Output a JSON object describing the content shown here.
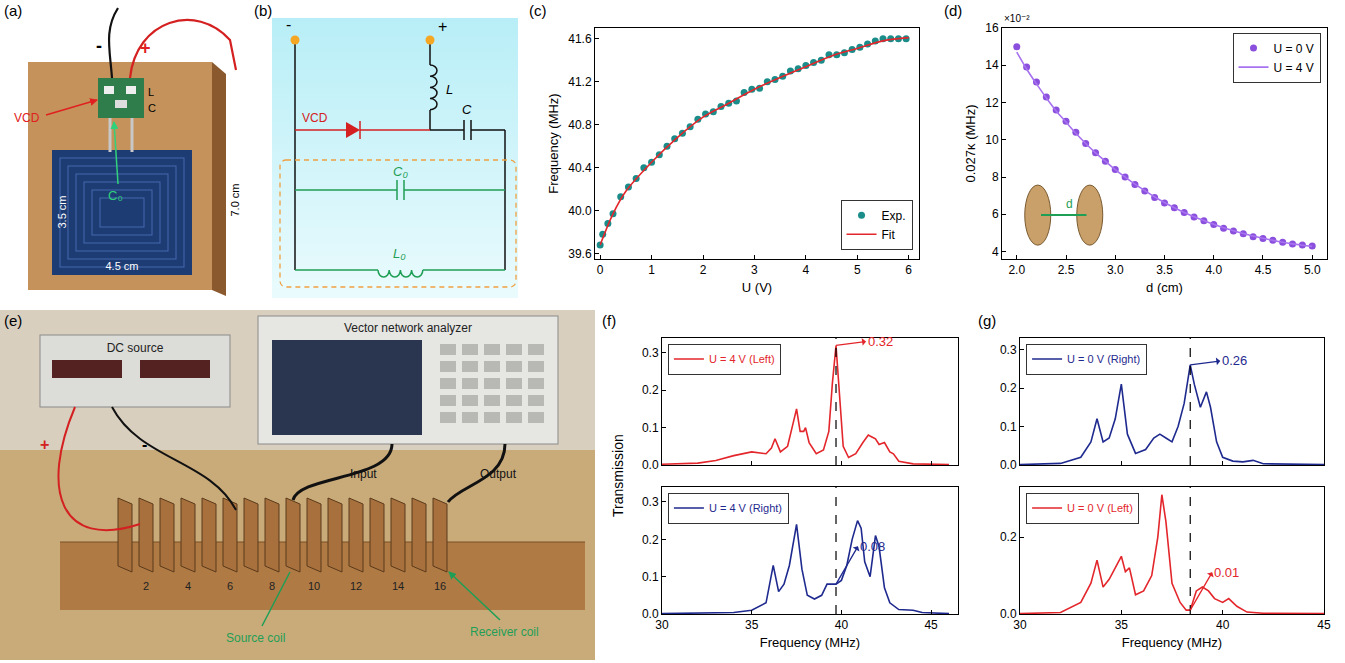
{
  "figures": {
    "a": {
      "letter": "(a)",
      "labels": {
        "minus": "-",
        "plus": "+",
        "vcd": "VCD",
        "l": "L",
        "c": "C",
        "c0": "C₀",
        "coil_height": "3.5 cm",
        "coil_width": "4.5 cm",
        "board": "7.0 cm"
      }
    },
    "b": {
      "letter": "(b)",
      "labels": {
        "minus": "-",
        "plus": "+",
        "l": "L",
        "vcd": "VCD",
        "c": "C",
        "c0": "C₀",
        "l0": "L₀"
      }
    },
    "e": {
      "letter": "(e)",
      "labels": {
        "dc_source": "DC source",
        "vna": "Vector network analyzer",
        "input": "Input",
        "output": "Output",
        "plus": "+",
        "minus": "-",
        "source_coil": "Source coil",
        "receiver_coil": "Receiver coil"
      },
      "coil_numbers": [
        2,
        4,
        6,
        8,
        10,
        12,
        14,
        16
      ]
    }
  },
  "chart_data": [
    {
      "letter": "(c)",
      "type": "line",
      "xlabel": "U (V)",
      "ylabel": "Frequency (MHz)",
      "xlim": [
        -0.1,
        6.2
      ],
      "xticks": [
        0,
        1,
        2,
        3,
        4,
        5,
        6
      ],
      "ylim": [
        39.55,
        41.7
      ],
      "yticks": [
        39.6,
        {
          "value": 40,
          "label": "40.0"
        },
        40.4,
        40.8,
        41.2,
        41.6
      ],
      "grid": false,
      "legend": "lower right",
      "series": [
        {
          "name": "Exp.",
          "type": "scatter",
          "marker": "circle",
          "color": "#1a8c8a",
          "x": [
            0,
            0.05,
            0.15,
            0.25,
            0.4,
            0.55,
            0.7,
            0.85,
            1.0,
            1.15,
            1.3,
            1.45,
            1.6,
            1.75,
            1.9,
            2.05,
            2.2,
            2.35,
            2.5,
            2.65,
            2.8,
            2.95,
            3.1,
            3.25,
            3.4,
            3.55,
            3.7,
            3.85,
            4.0,
            4.15,
            4.3,
            4.45,
            4.6,
            4.75,
            4.9,
            5.05,
            5.2,
            5.35,
            5.5,
            5.65,
            5.8,
            5.95
          ],
          "values": [
            39.68,
            39.78,
            39.88,
            39.97,
            40.13,
            40.22,
            40.3,
            40.4,
            40.45,
            40.52,
            40.6,
            40.67,
            40.72,
            40.78,
            40.85,
            40.9,
            40.92,
            40.97,
            41.0,
            41.02,
            41.1,
            41.13,
            41.14,
            41.2,
            41.22,
            41.25,
            41.3,
            41.32,
            41.35,
            41.38,
            41.4,
            41.45,
            41.45,
            41.47,
            41.5,
            41.52,
            41.55,
            41.58,
            41.6,
            41.6,
            41.6,
            41.6
          ]
        },
        {
          "name": "Fit",
          "type": "line",
          "line_style": "solid",
          "color": "#e3262b",
          "x": [
            0,
            0.25,
            0.5,
            1,
            1.5,
            2,
            2.5,
            3,
            3.5,
            4,
            4.5,
            5,
            5.5,
            6
          ],
          "values": [
            39.68,
            39.97,
            40.18,
            40.45,
            40.68,
            40.87,
            41.0,
            41.13,
            41.24,
            41.34,
            41.44,
            41.51,
            41.58,
            41.61
          ]
        }
      ]
    },
    {
      "letter": "(d)",
      "type": "line",
      "xlabel": "d (cm)",
      "ylabel": "0.027κ (MHz)",
      "y_multiplier": "×10⁻²",
      "inset_label": "d",
      "xlim": [
        1.85,
        5.15
      ],
      "xticks": [
        {
          "value": 2,
          "label": "2.0"
        },
        2.5,
        {
          "value": 3,
          "label": "3.0"
        },
        3.5,
        {
          "value": 4,
          "label": "4.0"
        },
        4.5,
        {
          "value": 5,
          "label": "5.0"
        }
      ],
      "ylim": [
        3.6,
        16
      ],
      "yticks": [
        4,
        6,
        8,
        10,
        12,
        14,
        16
      ],
      "grid": false,
      "legend": "upper right",
      "series": [
        {
          "name": "U = 0 V",
          "type": "scatter",
          "marker": "circle",
          "color": "#8a4fdc",
          "x": [
            2.0,
            2.1,
            2.2,
            2.3,
            2.4,
            2.5,
            2.6,
            2.7,
            2.8,
            2.9,
            3.0,
            3.1,
            3.2,
            3.3,
            3.4,
            3.5,
            3.6,
            3.7,
            3.8,
            3.9,
            4.0,
            4.1,
            4.2,
            4.3,
            4.4,
            4.5,
            4.6,
            4.7,
            4.8,
            4.9,
            5.0
          ],
          "values": [
            15.0,
            13.9,
            13.1,
            12.3,
            11.6,
            11.0,
            10.4,
            9.8,
            9.3,
            8.85,
            8.4,
            8.0,
            7.6,
            7.25,
            6.9,
            6.6,
            6.35,
            6.1,
            5.85,
            5.65,
            5.45,
            5.25,
            5.1,
            4.95,
            4.8,
            4.7,
            4.6,
            4.5,
            4.4,
            4.35,
            4.3
          ]
        },
        {
          "name": "U = 4 V",
          "type": "line",
          "line_style": "solid",
          "color": "#a772f0",
          "x": [
            2.0,
            2.1,
            2.2,
            2.3,
            2.4,
            2.5,
            2.6,
            2.7,
            2.8,
            2.9,
            3.0,
            3.1,
            3.2,
            3.3,
            3.4,
            3.5,
            3.6,
            3.7,
            3.8,
            3.9,
            4.0,
            4.1,
            4.2,
            4.3,
            4.4,
            4.5,
            4.6,
            4.7,
            4.8,
            4.9,
            5.0
          ],
          "values": [
            14.7,
            13.8,
            13.0,
            12.25,
            11.55,
            10.95,
            10.35,
            9.8,
            9.3,
            8.85,
            8.4,
            8.0,
            7.62,
            7.27,
            6.93,
            6.63,
            6.35,
            6.1,
            5.87,
            5.66,
            5.46,
            5.28,
            5.12,
            4.97,
            4.83,
            4.71,
            4.6,
            4.5,
            4.41,
            4.34,
            4.28
          ]
        }
      ]
    },
    {
      "letter": "(f)",
      "type": "line",
      "xlabel": "Frequency (MHz)",
      "ylabel": "Transmission",
      "xlim": [
        30,
        46.5
      ],
      "xticks": [
        30,
        35,
        40,
        45
      ],
      "grid": false,
      "dashed_x": 39.7,
      "subplots": [
        {
          "ylim": [
            0,
            0.34
          ],
          "yticks": [
            {
              "value": 0,
              "label": "0.0"
            },
            0.1,
            0.2,
            0.3
          ],
          "legend": "upper left",
          "tick_labels": "y",
          "annotation": {
            "text": "0.32",
            "x": 39.7,
            "y": 0.32
          },
          "series": [
            {
              "name": "U = 4 V (Left)",
              "type": "line",
              "line_style": "solid",
              "color": "#e3262b",
              "x": [
                30,
                32,
                33,
                34,
                35,
                35.8,
                36.1,
                36.3,
                36.6,
                37.0,
                37.3,
                37.5,
                37.7,
                37.9,
                38.0,
                38.2,
                38.6,
                39.0,
                39.3,
                39.5,
                39.7,
                39.9,
                40.1,
                40.4,
                40.8,
                41.2,
                41.5,
                41.7,
                41.9,
                42.1,
                42.4,
                42.7,
                42.9,
                43.2,
                44,
                46
              ],
              "values": [
                0.002,
                0.005,
                0.012,
                0.025,
                0.035,
                0.03,
                0.045,
                0.07,
                0.035,
                0.05,
                0.11,
                0.15,
                0.09,
                0.09,
                0.1,
                0.06,
                0.03,
                0.04,
                0.09,
                0.22,
                0.32,
                0.18,
                0.05,
                0.02,
                0.03,
                0.06,
                0.08,
                0.075,
                0.07,
                0.055,
                0.06,
                0.035,
                0.03,
                0.01,
                0.003,
                0.001
              ]
            }
          ]
        },
        {
          "ylim": [
            0,
            0.34
          ],
          "yticks": [
            {
              "value": 0,
              "label": "0.0"
            },
            0.1,
            0.2,
            0.3
          ],
          "legend": "upper left",
          "annotation": {
            "text": "0.08",
            "x": 39.7,
            "y": 0.08
          },
          "series": [
            {
              "name": "U = 4 V (Right)",
              "type": "line",
              "line_style": "solid",
              "color": "#1f2a8f",
              "x": [
                30,
                34,
                35,
                35.8,
                36.0,
                36.2,
                36.5,
                36.8,
                37.1,
                37.5,
                37.8,
                38.1,
                38.5,
                38.9,
                39.2,
                39.5,
                39.7,
                40.0,
                40.3,
                40.6,
                40.9,
                41.1,
                41.3,
                41.6,
                41.9,
                42.1,
                42.4,
                42.7,
                43.2,
                44,
                44.5,
                46
              ],
              "values": [
                0.001,
                0.004,
                0.01,
                0.03,
                0.08,
                0.13,
                0.06,
                0.08,
                0.13,
                0.24,
                0.12,
                0.05,
                0.04,
                0.05,
                0.08,
                0.08,
                0.08,
                0.09,
                0.13,
                0.2,
                0.25,
                0.23,
                0.14,
                0.1,
                0.21,
                0.18,
                0.07,
                0.03,
                0.012,
                0.01,
                0.004,
                0.001
              ]
            }
          ]
        }
      ]
    },
    {
      "letter": "(g)",
      "type": "line",
      "xlabel": "Frequency (MHz)",
      "xlim": [
        30,
        45
      ],
      "xticks": [
        30,
        35,
        40,
        45
      ],
      "grid": false,
      "dashed_x": 38.4,
      "subplots": [
        {
          "ylim": [
            0,
            0.33
          ],
          "yticks": [
            {
              "value": 0,
              "label": "0.0"
            },
            0.1,
            0.2,
            0.3
          ],
          "legend": "upper left",
          "tick_labels": "y",
          "annotation": {
            "text": "0.26",
            "x": 38.4,
            "y": 0.26
          },
          "series": [
            {
              "name": "U = 0 V (Right)",
              "type": "line",
              "line_style": "solid",
              "color": "#1f2a8f",
              "x": [
                30,
                32,
                33,
                33.5,
                33.8,
                34.1,
                34.4,
                34.7,
                35.0,
                35.3,
                35.7,
                36.2,
                36.6,
                36.9,
                37.2,
                37.5,
                37.8,
                38.1,
                38.4,
                38.6,
                38.9,
                39.2,
                39.4,
                39.7,
                40.0,
                40.5,
                41,
                41.5,
                42,
                45
              ],
              "values": [
                0.001,
                0.004,
                0.02,
                0.06,
                0.12,
                0.06,
                0.07,
                0.12,
                0.21,
                0.08,
                0.03,
                0.04,
                0.07,
                0.08,
                0.07,
                0.06,
                0.1,
                0.16,
                0.26,
                0.21,
                0.15,
                0.19,
                0.15,
                0.06,
                0.02,
                0.01,
                0.008,
                0.012,
                0.003,
                0.001
              ]
            }
          ]
        },
        {
          "ylim": [
            0,
            0.33
          ],
          "yticks": [
            {
              "value": 0,
              "label": "0.0"
            },
            0.2
          ],
          "legend": "upper left",
          "annotation": {
            "text": "0.01",
            "x": 38.4,
            "y": 0.01
          },
          "series": [
            {
              "name": "U = 0 V (Left)",
              "type": "line",
              "line_style": "solid",
              "color": "#e3262b",
              "x": [
                30,
                32,
                33,
                33.5,
                33.8,
                34.1,
                34.4,
                34.8,
                35.0,
                35.2,
                35.4,
                35.7,
                36.1,
                36.5,
                36.8,
                37.0,
                37.2,
                37.5,
                37.9,
                38.2,
                38.4,
                38.7,
                39.0,
                39.3,
                39.6,
                40.0,
                40.3,
                40.7,
                41.2,
                42,
                45
              ],
              "values": [
                0.001,
                0.004,
                0.03,
                0.08,
                0.14,
                0.07,
                0.09,
                0.13,
                0.15,
                0.11,
                0.12,
                0.05,
                0.06,
                0.1,
                0.2,
                0.31,
                0.24,
                0.08,
                0.03,
                0.01,
                0.01,
                0.06,
                0.07,
                0.06,
                0.04,
                0.03,
                0.04,
                0.02,
                0.005,
                0.002,
                0.001
              ]
            }
          ]
        }
      ]
    }
  ]
}
